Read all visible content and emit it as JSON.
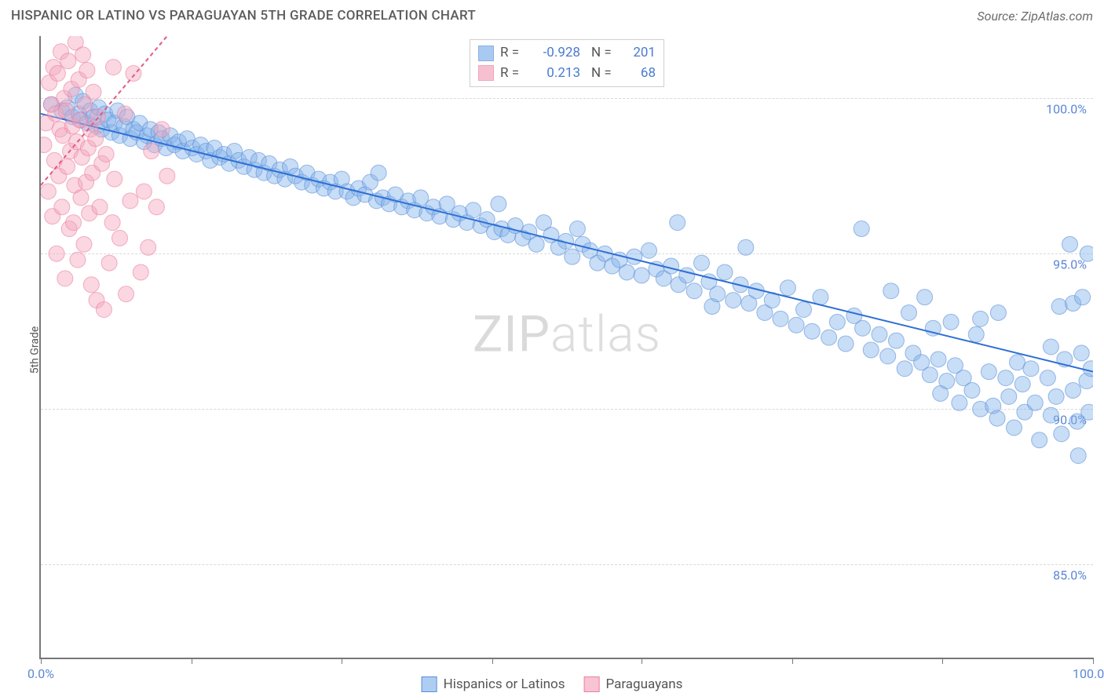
{
  "header": {
    "title": "HISPANIC OR LATINO VS PARAGUAYAN 5TH GRADE CORRELATION CHART",
    "source": "Source: ZipAtlas.com"
  },
  "yaxis": {
    "label": "5th Grade"
  },
  "watermark": {
    "part1": "ZIP",
    "part2": "atlas"
  },
  "chart": {
    "type": "scatter",
    "xlim": [
      0,
      100
    ],
    "ylim": [
      82,
      102
    ],
    "xtick_positions": [
      0,
      14.3,
      28.6,
      42.9,
      57.1,
      71.4,
      85.7,
      100
    ],
    "xtick_labels": {
      "0": "0.0%",
      "100": "100.0%"
    },
    "ytick_positions": [
      85,
      90,
      95,
      100
    ],
    "ytick_labels": {
      "85": "85.0%",
      "90": "90.0%",
      "95": "95.0%",
      "100": "100.0%"
    },
    "grid_color": "#d9d9d9",
    "background_color": "#ffffff",
    "point_radius": 10,
    "point_opacity": 0.45,
    "trend_line_width": 2,
    "series": [
      {
        "name": "Hispanics or Latinos",
        "color": "#86b4ea",
        "stroke": "#5b8fd6",
        "trend_color": "#2d6fd4",
        "R": "-0.928",
        "N": "201",
        "trend": {
          "x1": 0,
          "y1": 99.5,
          "x2": 100,
          "y2": 91.2
        },
        "points": [
          [
            1,
            99.8
          ],
          [
            2,
            99.6
          ],
          [
            2.5,
            99.7
          ],
          [
            3,
            99.4
          ],
          [
            3.3,
            100.1
          ],
          [
            3.6,
            99.5
          ],
          [
            3.8,
            99.3
          ],
          [
            4,
            99.9
          ],
          [
            4.4,
            99.2
          ],
          [
            4.7,
            99.6
          ],
          [
            5,
            99.4
          ],
          [
            5.3,
            99.1
          ],
          [
            5.5,
            99.7
          ],
          [
            5.8,
            99.0
          ],
          [
            6.1,
            99.5
          ],
          [
            6.4,
            99.3
          ],
          [
            6.7,
            98.9
          ],
          [
            7,
            99.2
          ],
          [
            7.3,
            99.6
          ],
          [
            7.5,
            98.8
          ],
          [
            7.9,
            99.1
          ],
          [
            8.2,
            99.4
          ],
          [
            8.5,
            98.7
          ],
          [
            8.8,
            99.0
          ],
          [
            9.1,
            98.9
          ],
          [
            9.4,
            99.2
          ],
          [
            9.8,
            98.6
          ],
          [
            10.1,
            98.8
          ],
          [
            10.4,
            99.0
          ],
          [
            10.8,
            98.5
          ],
          [
            11.2,
            98.9
          ],
          [
            11.5,
            98.7
          ],
          [
            11.9,
            98.4
          ],
          [
            12.3,
            98.8
          ],
          [
            12.7,
            98.5
          ],
          [
            13.1,
            98.6
          ],
          [
            13.5,
            98.3
          ],
          [
            13.9,
            98.7
          ],
          [
            14.4,
            98.4
          ],
          [
            14.8,
            98.2
          ],
          [
            15.2,
            98.5
          ],
          [
            15.7,
            98.3
          ],
          [
            16.1,
            98.0
          ],
          [
            16.5,
            98.4
          ],
          [
            17,
            98.1
          ],
          [
            17.4,
            98.2
          ],
          [
            17.9,
            97.9
          ],
          [
            18.4,
            98.3
          ],
          [
            18.8,
            98.0
          ],
          [
            19.3,
            97.8
          ],
          [
            19.8,
            98.1
          ],
          [
            20.3,
            97.7
          ],
          [
            20.7,
            98.0
          ],
          [
            21.2,
            97.6
          ],
          [
            21.7,
            97.9
          ],
          [
            22.2,
            97.5
          ],
          [
            22.7,
            97.7
          ],
          [
            23.2,
            97.4
          ],
          [
            23.7,
            97.8
          ],
          [
            24.2,
            97.5
          ],
          [
            24.8,
            97.3
          ],
          [
            25.3,
            97.6
          ],
          [
            25.8,
            97.2
          ],
          [
            26.4,
            97.4
          ],
          [
            26.9,
            97.1
          ],
          [
            27.5,
            97.3
          ],
          [
            28,
            97.0
          ],
          [
            28.6,
            97.4
          ],
          [
            29.1,
            97.0
          ],
          [
            29.7,
            96.8
          ],
          [
            30.2,
            97.1
          ],
          [
            30.8,
            96.9
          ],
          [
            31.3,
            97.3
          ],
          [
            31.9,
            96.7
          ],
          [
            32.1,
            97.6
          ],
          [
            32.5,
            96.8
          ],
          [
            33.1,
            96.6
          ],
          [
            33.7,
            96.9
          ],
          [
            34.3,
            96.5
          ],
          [
            34.9,
            96.7
          ],
          [
            35.5,
            96.4
          ],
          [
            36.1,
            96.8
          ],
          [
            36.7,
            96.3
          ],
          [
            37.3,
            96.5
          ],
          [
            37.9,
            96.2
          ],
          [
            38.6,
            96.6
          ],
          [
            39.2,
            96.1
          ],
          [
            39.8,
            96.3
          ],
          [
            40.5,
            96.0
          ],
          [
            41.1,
            96.4
          ],
          [
            41.8,
            95.9
          ],
          [
            42.4,
            96.1
          ],
          [
            43.1,
            95.7
          ],
          [
            43.5,
            96.6
          ],
          [
            43.8,
            95.8
          ],
          [
            44.4,
            95.6
          ],
          [
            45.1,
            95.9
          ],
          [
            45.8,
            95.5
          ],
          [
            46.4,
            95.7
          ],
          [
            47.1,
            95.3
          ],
          [
            47.8,
            96.0
          ],
          [
            48.5,
            95.6
          ],
          [
            49.2,
            95.2
          ],
          [
            49.9,
            95.4
          ],
          [
            50.5,
            94.9
          ],
          [
            51,
            95.8
          ],
          [
            51.5,
            95.3
          ],
          [
            52.2,
            95.1
          ],
          [
            52.9,
            94.7
          ],
          [
            53.6,
            95.0
          ],
          [
            54.3,
            94.6
          ],
          [
            55,
            94.8
          ],
          [
            55.7,
            94.4
          ],
          [
            56.4,
            94.9
          ],
          [
            57.1,
            94.3
          ],
          [
            57.8,
            95.1
          ],
          [
            58.5,
            94.5
          ],
          [
            59.2,
            94.2
          ],
          [
            59.9,
            94.6
          ],
          [
            60.5,
            96.0
          ],
          [
            60.6,
            94.0
          ],
          [
            61.4,
            94.3
          ],
          [
            62.1,
            93.8
          ],
          [
            62.8,
            94.7
          ],
          [
            63.5,
            94.1
          ],
          [
            63.8,
            93.3
          ],
          [
            64.3,
            93.7
          ],
          [
            65,
            94.4
          ],
          [
            65.8,
            93.5
          ],
          [
            66.5,
            94.0
          ],
          [
            67,
            95.2
          ],
          [
            67.3,
            93.4
          ],
          [
            68,
            93.8
          ],
          [
            68.8,
            93.1
          ],
          [
            69.5,
            93.5
          ],
          [
            70.3,
            92.9
          ],
          [
            71,
            93.9
          ],
          [
            71.8,
            92.7
          ],
          [
            72.5,
            93.2
          ],
          [
            73.3,
            92.5
          ],
          [
            74.1,
            93.6
          ],
          [
            74.9,
            92.3
          ],
          [
            75.7,
            92.8
          ],
          [
            76.5,
            92.1
          ],
          [
            77.3,
            93.0
          ],
          [
            78,
            95.8
          ],
          [
            78.1,
            92.6
          ],
          [
            78.9,
            91.9
          ],
          [
            79.7,
            92.4
          ],
          [
            80.5,
            91.7
          ],
          [
            80.8,
            93.8
          ],
          [
            81.3,
            92.2
          ],
          [
            82.1,
            91.3
          ],
          [
            82.5,
            93.1
          ],
          [
            82.9,
            91.8
          ],
          [
            83.7,
            91.5
          ],
          [
            84,
            93.6
          ],
          [
            84.5,
            91.1
          ],
          [
            84.8,
            92.6
          ],
          [
            85.3,
            91.6
          ],
          [
            85.5,
            90.5
          ],
          [
            86.1,
            90.9
          ],
          [
            86.5,
            92.8
          ],
          [
            86.9,
            91.4
          ],
          [
            87.3,
            90.2
          ],
          [
            87.7,
            91.0
          ],
          [
            88.5,
            90.6
          ],
          [
            88.9,
            92.4
          ],
          [
            89.3,
            90.0
          ],
          [
            89.3,
            92.9
          ],
          [
            90.1,
            91.2
          ],
          [
            90.5,
            90.1
          ],
          [
            90.9,
            89.7
          ],
          [
            91,
            93.1
          ],
          [
            91.7,
            91.0
          ],
          [
            92,
            90.4
          ],
          [
            92.5,
            89.4
          ],
          [
            92.8,
            91.5
          ],
          [
            93.3,
            90.8
          ],
          [
            93.5,
            89.9
          ],
          [
            94.1,
            91.3
          ],
          [
            94.5,
            90.2
          ],
          [
            94.9,
            89.0
          ],
          [
            95.7,
            91.0
          ],
          [
            96,
            89.8
          ],
          [
            96,
            92.0
          ],
          [
            96.5,
            90.4
          ],
          [
            96.8,
            93.3
          ],
          [
            97,
            89.2
          ],
          [
            97.3,
            91.6
          ],
          [
            97.8,
            95.3
          ],
          [
            98.1,
            90.6
          ],
          [
            98.1,
            93.4
          ],
          [
            98.5,
            89.6
          ],
          [
            98.6,
            88.5
          ],
          [
            98.9,
            91.8
          ],
          [
            99,
            93.6
          ],
          [
            99.4,
            90.9
          ],
          [
            99.5,
            95.0
          ],
          [
            99.6,
            89.9
          ],
          [
            99.8,
            91.3
          ]
        ]
      },
      {
        "name": "Paraguayans",
        "color": "#f4a6bd",
        "stroke": "#eb7fa1",
        "trend_color": "#e05a87",
        "trend_dash": "5,4",
        "R": "0.213",
        "N": "68",
        "trend": {
          "x1": 0,
          "y1": 97.2,
          "x2": 12,
          "y2": 102
        },
        "points": [
          [
            0.3,
            98.5
          ],
          [
            0.5,
            99.2
          ],
          [
            0.7,
            97.0
          ],
          [
            0.8,
            100.5
          ],
          [
            1.0,
            99.8
          ],
          [
            1.1,
            96.2
          ],
          [
            1.2,
            101.0
          ],
          [
            1.3,
            98.0
          ],
          [
            1.4,
            99.5
          ],
          [
            1.5,
            95.0
          ],
          [
            1.6,
            100.8
          ],
          [
            1.7,
            97.5
          ],
          [
            1.8,
            99.0
          ],
          [
            1.9,
            101.5
          ],
          [
            2.0,
            96.5
          ],
          [
            2.1,
            98.8
          ],
          [
            2.2,
            100.0
          ],
          [
            2.3,
            94.2
          ],
          [
            2.4,
            99.6
          ],
          [
            2.5,
            97.8
          ],
          [
            2.6,
            101.2
          ],
          [
            2.7,
            95.8
          ],
          [
            2.8,
            98.3
          ],
          [
            2.9,
            100.3
          ],
          [
            3.0,
            99.1
          ],
          [
            3.1,
            96.0
          ],
          [
            3.2,
            97.2
          ],
          [
            3.3,
            101.8
          ],
          [
            3.4,
            98.6
          ],
          [
            3.5,
            94.8
          ],
          [
            3.6,
            100.6
          ],
          [
            3.7,
            99.3
          ],
          [
            3.8,
            96.8
          ],
          [
            3.9,
            98.1
          ],
          [
            4.0,
            101.4
          ],
          [
            4.1,
            95.3
          ],
          [
            4.2,
            99.8
          ],
          [
            4.3,
            97.3
          ],
          [
            4.4,
            100.9
          ],
          [
            4.5,
            98.4
          ],
          [
            4.6,
            96.3
          ],
          [
            4.7,
            99.0
          ],
          [
            4.8,
            94.0
          ],
          [
            4.9,
            97.6
          ],
          [
            5.0,
            100.2
          ],
          [
            5.2,
            98.7
          ],
          [
            5.3,
            93.5
          ],
          [
            5.4,
            99.4
          ],
          [
            5.6,
            96.5
          ],
          [
            5.8,
            97.9
          ],
          [
            6.0,
            93.2
          ],
          [
            6.2,
            98.2
          ],
          [
            6.5,
            94.7
          ],
          [
            6.8,
            96.0
          ],
          [
            6.9,
            101.0
          ],
          [
            7.0,
            97.4
          ],
          [
            7.5,
            95.5
          ],
          [
            8.0,
            99.5
          ],
          [
            8.1,
            93.7
          ],
          [
            8.5,
            96.7
          ],
          [
            8.8,
            100.8
          ],
          [
            9.5,
            94.4
          ],
          [
            9.8,
            97.0
          ],
          [
            10.2,
            95.2
          ],
          [
            10.5,
            98.3
          ],
          [
            11,
            96.5
          ],
          [
            11.5,
            99.0
          ],
          [
            12,
            97.5
          ]
        ]
      }
    ]
  },
  "bottom_legend": [
    {
      "label": "Hispanics or Latinos",
      "fill": "#aecdf2",
      "stroke": "#5b8fd6"
    },
    {
      "label": "Paraguayans",
      "fill": "#f8c3d3",
      "stroke": "#eb7fa1"
    }
  ]
}
